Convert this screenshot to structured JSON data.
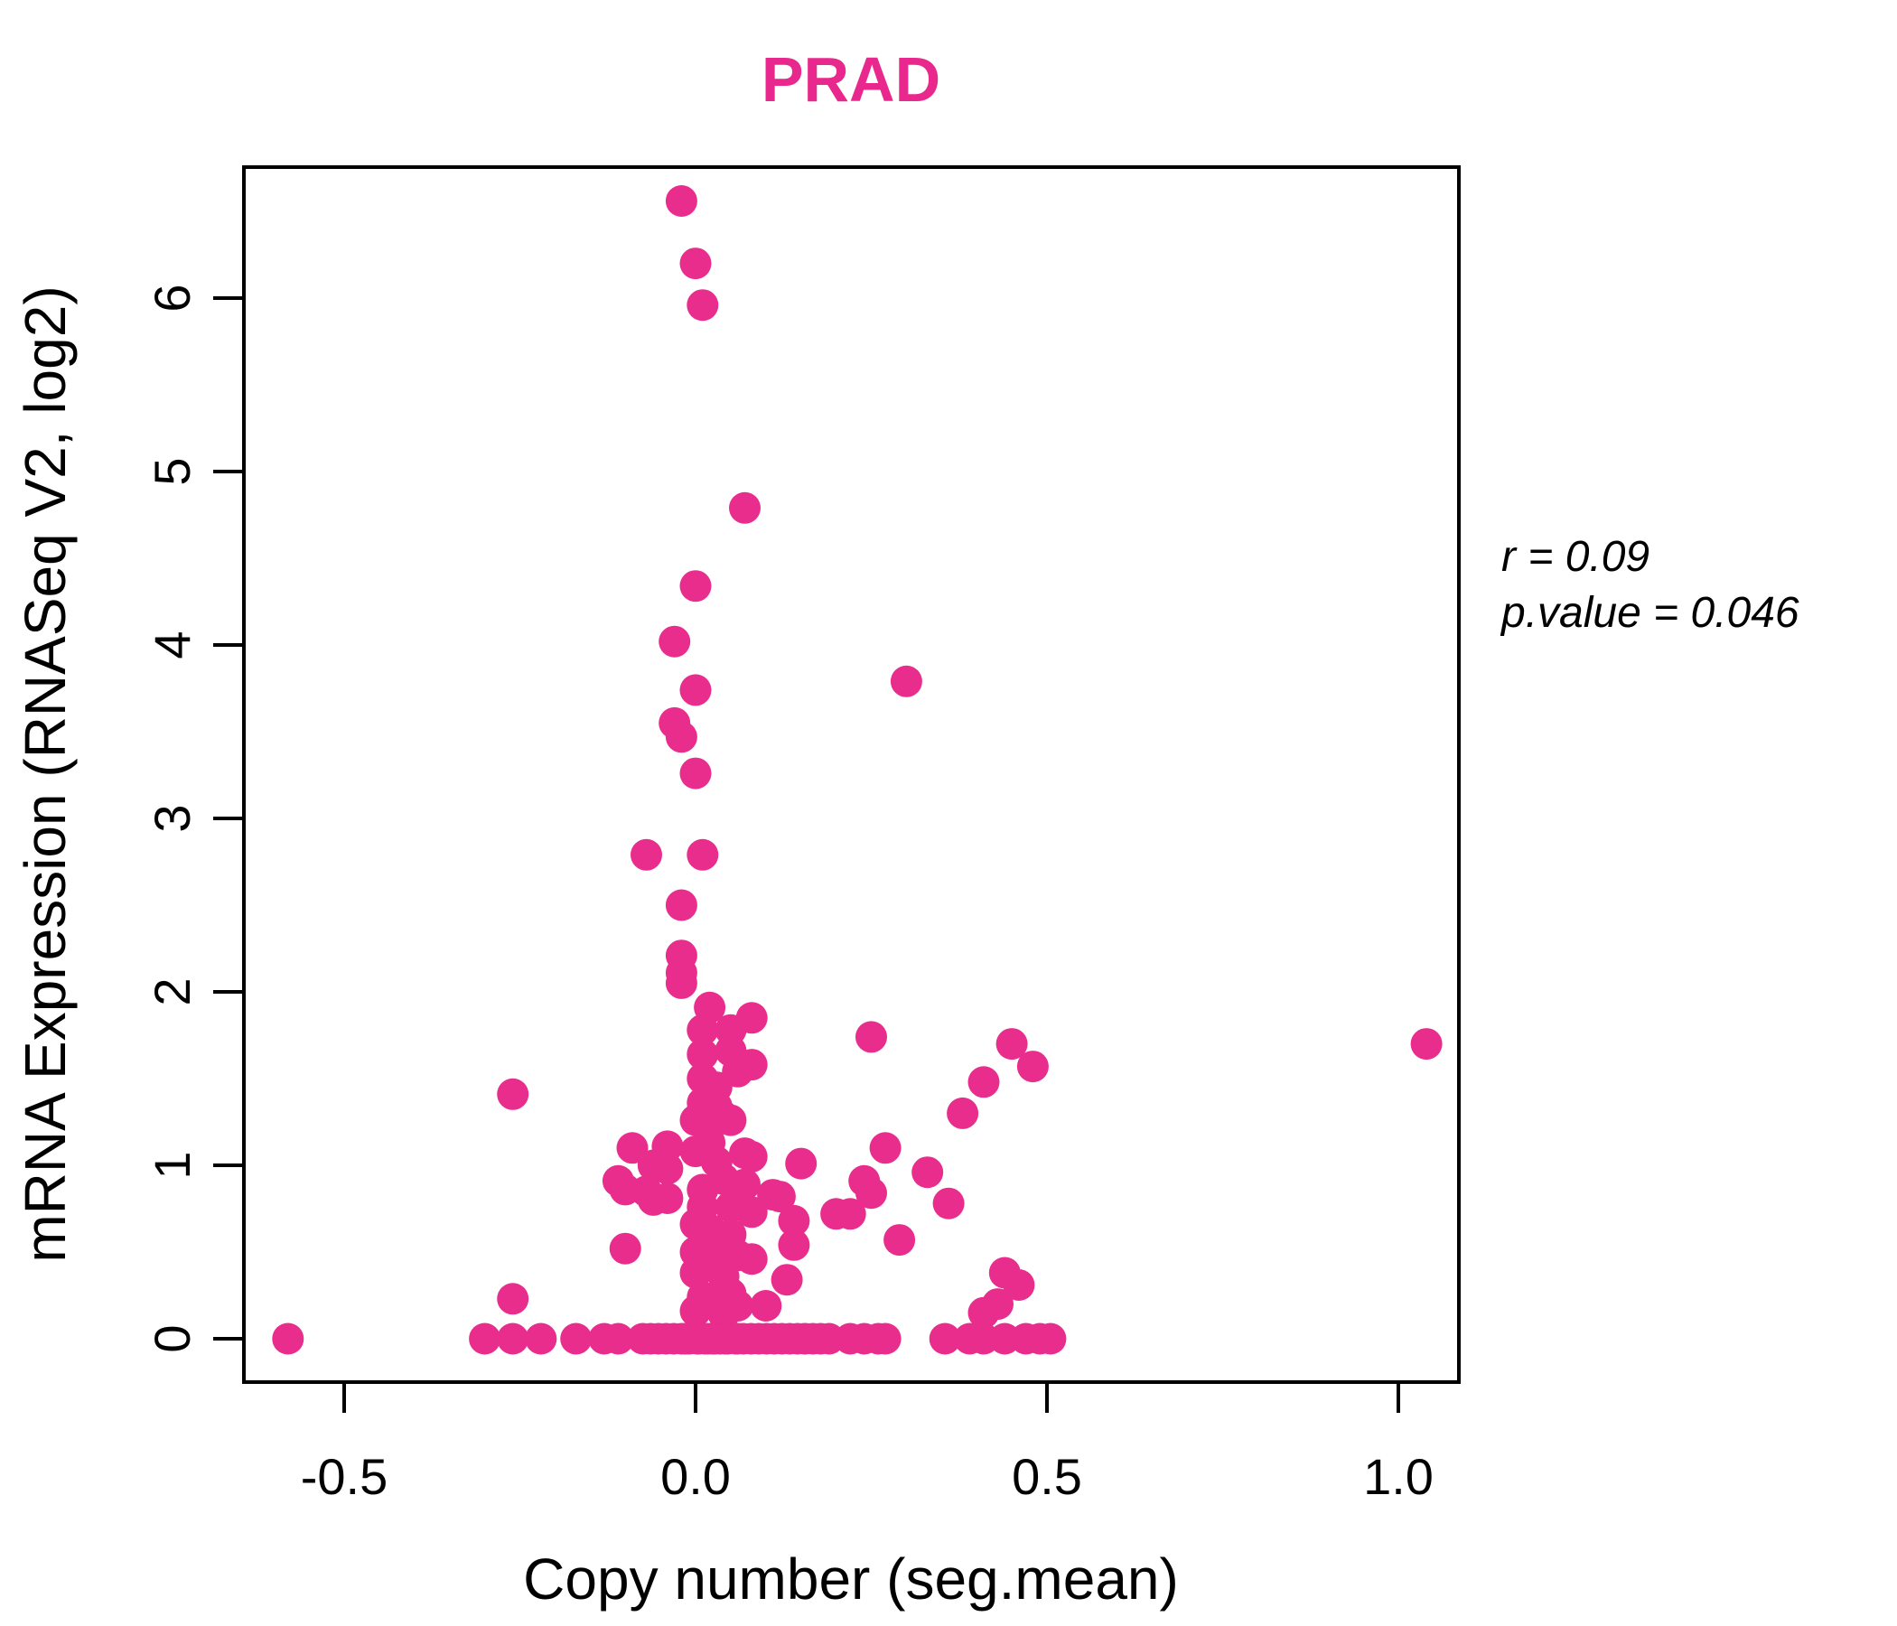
{
  "chart_data": {
    "type": "scatter",
    "title": "PRAD",
    "xlabel": "Copy number (seg.mean)",
    "ylabel": "mRNA Expression (RNASeq V2, log2)",
    "annotation": {
      "r_text": "r = 0.09",
      "p_text": "p.value = 0.046"
    },
    "x_ticks": [
      "-0.5",
      "0.0",
      "0.5",
      "1.0"
    ],
    "x_tick_values": [
      -0.5,
      0.0,
      0.5,
      1.0
    ],
    "y_ticks": [
      "0",
      "1",
      "2",
      "3",
      "4",
      "5",
      "6"
    ],
    "y_tick_values": [
      0,
      1,
      2,
      3,
      4,
      5,
      6
    ],
    "xlim": [
      -0.65,
      1.09
    ],
    "ylim": [
      -0.26,
      6.76
    ],
    "grid": false,
    "legend": "none",
    "colors": {
      "point": "#E82D8C",
      "title": "#E8288C",
      "axis": "#000000"
    },
    "points": [
      [
        -0.02,
        6.56
      ],
      [
        0.0,
        6.2
      ],
      [
        0.01,
        5.96
      ],
      [
        0.07,
        4.79
      ],
      [
        0.0,
        4.34
      ],
      [
        -0.03,
        4.02
      ],
      [
        0.0,
        3.74
      ],
      [
        0.3,
        3.79
      ],
      [
        -0.03,
        3.55
      ],
      [
        -0.02,
        3.47
      ],
      [
        0.0,
        3.26
      ],
      [
        -0.07,
        2.79
      ],
      [
        0.01,
        2.79
      ],
      [
        -0.02,
        2.5
      ],
      [
        -0.02,
        2.21
      ],
      [
        -0.02,
        2.11
      ],
      [
        -0.02,
        2.05
      ],
      [
        0.02,
        1.91
      ],
      [
        0.08,
        1.85
      ],
      [
        0.01,
        1.78
      ],
      [
        0.05,
        1.78
      ],
      [
        0.05,
        1.66
      ],
      [
        0.01,
        1.64
      ],
      [
        0.08,
        1.58
      ],
      [
        0.06,
        1.54
      ],
      [
        0.01,
        1.5
      ],
      [
        0.03,
        1.45
      ],
      [
        0.25,
        1.74
      ],
      [
        0.01,
        1.36
      ],
      [
        0.03,
        1.34
      ],
      [
        0.0,
        1.26
      ],
      [
        0.02,
        1.22
      ],
      [
        0.04,
        1.28
      ],
      [
        0.05,
        1.26
      ],
      [
        0.02,
        1.13
      ],
      [
        0.0,
        1.08
      ],
      [
        0.03,
        1.02
      ],
      [
        0.08,
        1.05
      ],
      [
        -0.04,
        0.98
      ],
      [
        -0.09,
        1.1
      ],
      [
        -0.04,
        1.11
      ],
      [
        -0.06,
        1.0
      ],
      [
        0.07,
        1.07
      ],
      [
        0.15,
        1.01
      ],
      [
        0.27,
        1.1
      ],
      [
        0.33,
        0.96
      ],
      [
        -0.11,
        0.91
      ],
      [
        -0.07,
        0.85
      ],
      [
        0.24,
        0.91
      ],
      [
        0.36,
        0.78
      ],
      [
        0.45,
        1.7
      ],
      [
        0.48,
        1.57
      ],
      [
        0.41,
        1.48
      ],
      [
        0.38,
        1.3
      ],
      [
        1.04,
        1.7
      ],
      [
        -0.26,
        1.41
      ],
      [
        0.01,
        0.86
      ],
      [
        0.04,
        0.92
      ],
      [
        0.07,
        0.89
      ],
      [
        -0.04,
        0.81
      ],
      [
        0.01,
        0.76
      ],
      [
        0.05,
        0.76
      ],
      [
        0.08,
        0.73
      ],
      [
        0.12,
        0.82
      ],
      [
        0.0,
        0.66
      ],
      [
        0.02,
        0.63
      ],
      [
        0.05,
        0.6
      ],
      [
        0.14,
        0.68
      ],
      [
        0.14,
        0.54
      ],
      [
        0.0,
        0.5
      ],
      [
        0.03,
        0.48
      ],
      [
        0.06,
        0.48
      ],
      [
        0.08,
        0.46
      ],
      [
        0.0,
        0.38
      ],
      [
        0.04,
        0.36
      ],
      [
        0.13,
        0.34
      ],
      [
        0.01,
        0.24
      ],
      [
        0.05,
        0.26
      ],
      [
        0.0,
        0.16
      ],
      [
        0.04,
        0.14
      ],
      [
        0.06,
        0.19
      ],
      [
        0.1,
        0.19
      ],
      [
        -0.1,
        0.86
      ],
      [
        -0.06,
        0.8
      ],
      [
        -0.1,
        0.52
      ],
      [
        -0.26,
        0.23
      ],
      [
        0.11,
        0.83
      ],
      [
        0.2,
        0.72
      ],
      [
        0.22,
        0.72
      ],
      [
        0.25,
        0.84
      ],
      [
        0.29,
        0.57
      ],
      [
        0.44,
        0.38
      ],
      [
        0.46,
        0.31
      ],
      [
        0.43,
        0.2
      ],
      [
        0.41,
        0.15
      ],
      [
        -0.58,
        0.0
      ],
      [
        -0.3,
        0.0
      ],
      [
        -0.26,
        0.0
      ],
      [
        -0.22,
        0.0
      ],
      [
        -0.17,
        0.0
      ],
      [
        -0.13,
        0.0
      ],
      [
        -0.11,
        0.0
      ],
      [
        -0.075,
        0.0
      ],
      [
        -0.064,
        0.0
      ],
      [
        -0.053,
        0.0
      ],
      [
        -0.042,
        0.0
      ],
      [
        -0.031,
        0.0
      ],
      [
        -0.02,
        0.0
      ],
      [
        -0.009,
        0.0
      ],
      [
        0.002,
        0.0
      ],
      [
        0.013,
        0.0
      ],
      [
        0.024,
        0.0
      ],
      [
        0.035,
        0.0
      ],
      [
        0.046,
        0.0
      ],
      [
        0.057,
        0.0
      ],
      [
        0.068,
        0.0
      ],
      [
        0.079,
        0.0
      ],
      [
        0.09,
        0.0
      ],
      [
        0.101,
        0.0
      ],
      [
        0.112,
        0.0
      ],
      [
        0.123,
        0.0
      ],
      [
        0.134,
        0.0
      ],
      [
        0.145,
        0.0
      ],
      [
        0.156,
        0.0
      ],
      [
        0.167,
        0.0
      ],
      [
        0.178,
        0.0
      ],
      [
        -0.015,
        0.0
      ],
      [
        0.005,
        0.0
      ],
      [
        0.018,
        0.0
      ],
      [
        0.028,
        0.0
      ],
      [
        0.042,
        0.0
      ],
      [
        0.06,
        0.0
      ],
      [
        0.19,
        0.0
      ],
      [
        0.22,
        0.0
      ],
      [
        0.24,
        0.0
      ],
      [
        0.26,
        0.0
      ],
      [
        0.27,
        0.0
      ],
      [
        0.355,
        0.0
      ],
      [
        0.39,
        0.0
      ],
      [
        0.41,
        0.0
      ],
      [
        0.44,
        0.0
      ],
      [
        0.47,
        0.0
      ],
      [
        0.49,
        0.0
      ],
      [
        0.505,
        0.0
      ]
    ]
  }
}
